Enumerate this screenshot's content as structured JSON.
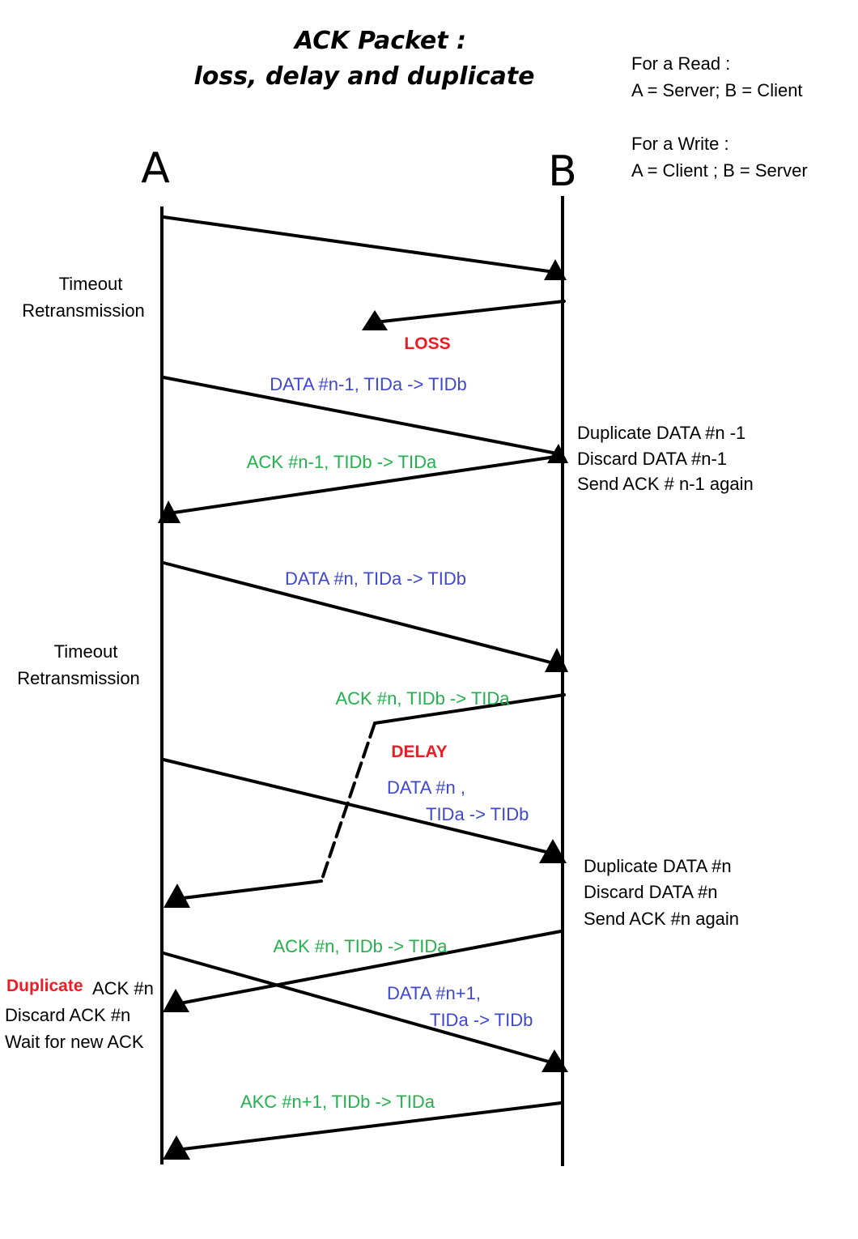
{
  "title": {
    "line1": "ACK  Packet :",
    "line2": "loss, delay and duplicate"
  },
  "entities": {
    "a": "A",
    "b": "B"
  },
  "roles": {
    "read_heading": "For a Read :",
    "read_mapping": "A = Server;  B = Client",
    "write_heading": "For a Write :",
    "write_mapping": "A = Client ;  B = Server"
  },
  "a_notes": {
    "timeout1_line1": "Timeout",
    "timeout1_line2": "Retransmission",
    "timeout2_line1": "Timeout",
    "timeout2_line2": "Retransmission",
    "dup_tag": "Duplicate",
    "dup_rest": "ACK #n",
    "dup_line2": "Discard ACK #n",
    "dup_line3": "Wait for new ACK"
  },
  "b_notes": {
    "dup1_line1": "Duplicate  DATA #n -1",
    "dup1_line2": "Discard DATA #n-1",
    "dup1_line3": "Send ACK # n-1 again",
    "dup2_line1": "Duplicate  DATA #n",
    "dup2_line2": "Discard DATA #n",
    "dup2_line3": "Send ACK #n again"
  },
  "events": {
    "loss": "LOSS",
    "delay": "DELAY"
  },
  "messages": {
    "data_n_minus_1": "DATA #n-1, TIDa -> TIDb",
    "ack_n_minus_1": "ACK #n-1, TIDb -> TIDa",
    "data_n": "DATA #n, TIDa -> TIDb",
    "ack_n_delayed": "ACK #n, TIDb -> TIDa",
    "data_n_retx_line1": "DATA #n ,",
    "data_n_retx_line2": "TIDa -> TIDb",
    "ack_n_again": "ACK #n, TIDb -> TIDa",
    "data_n_plus_1_line1": "DATA #n+1,",
    "data_n_plus_1_line2": "TIDa -> TIDb",
    "ack_n_plus_1": "AKC #n+1, TIDb -> TIDa"
  },
  "colors": {
    "data_label": "#3f48cc",
    "ack_label": "#22b14c",
    "event_label": "#ed1c24",
    "line": "#000000"
  }
}
